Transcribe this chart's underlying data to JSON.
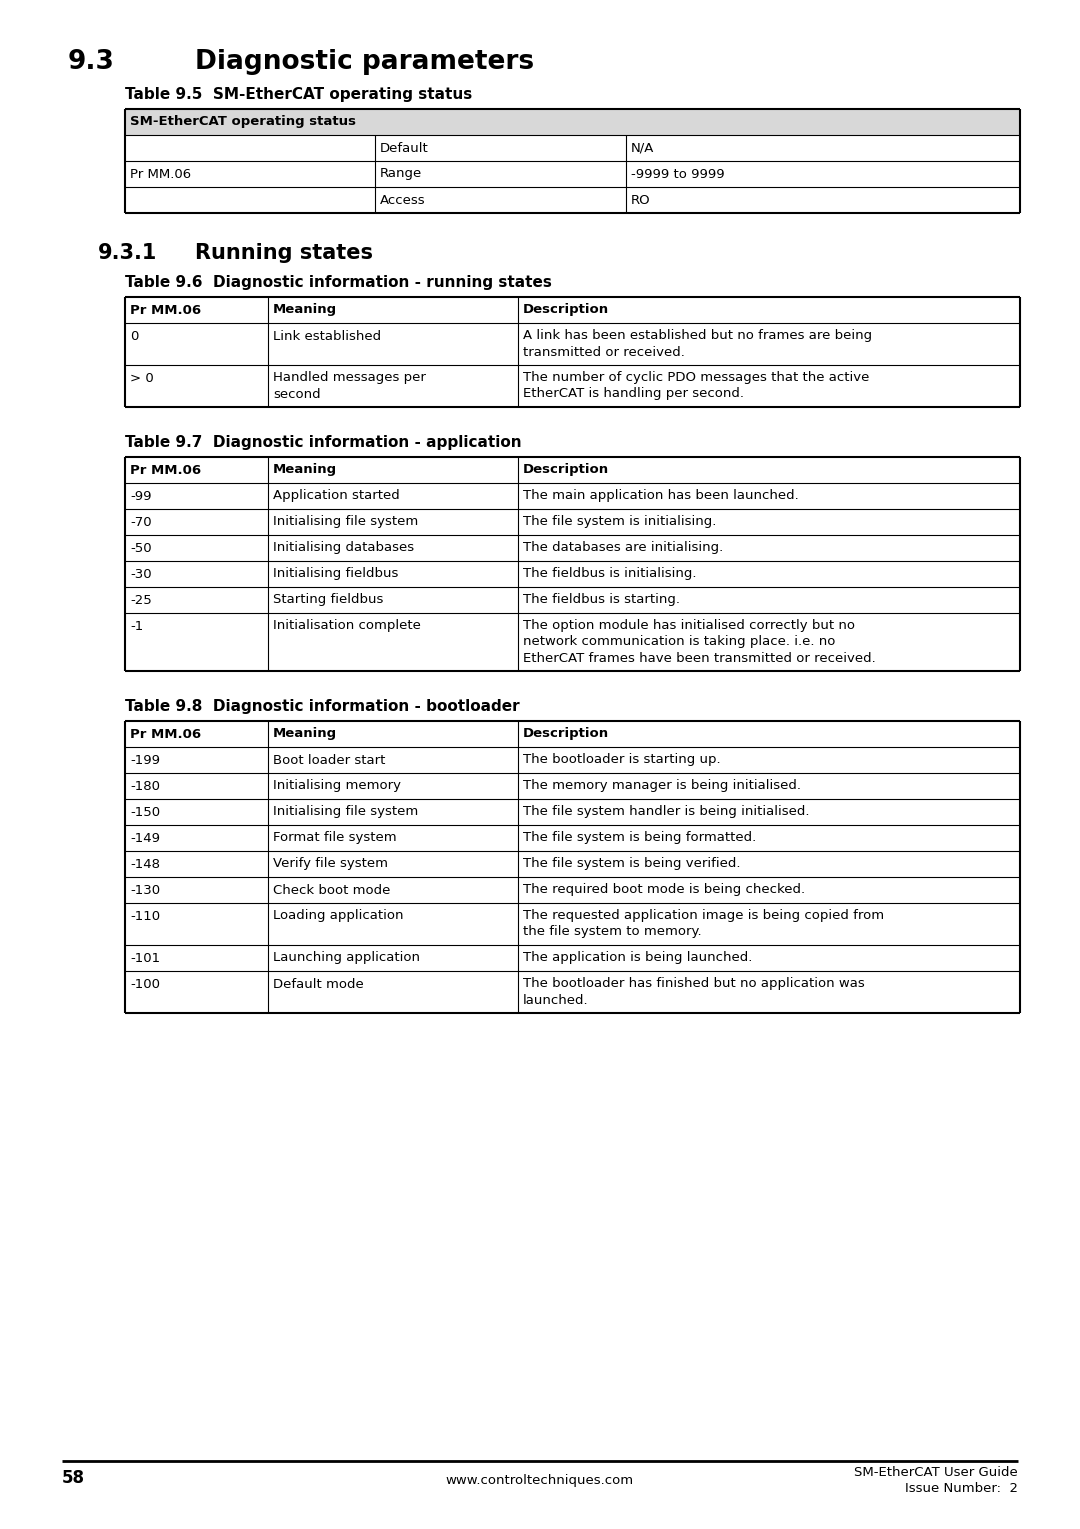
{
  "page_number": "58",
  "footer_website": "www.controltechniques.com",
  "footer_right1": "SM-EtherCAT User Guide",
  "footer_right2": "Issue Number:  2",
  "section_title": "9.3",
  "section_title_text": "Diagnostic parameters",
  "subsection_title": "9.3.1",
  "subsection_title_text": "Running states",
  "table95_title": "Table 9.5  SM-EtherCAT operating status",
  "table95_header": "SM-EtherCAT operating status",
  "table96_title": "Table 9.6  Diagnostic information - running states",
  "table96_cols": [
    "Pr MM.06",
    "Meaning",
    "Description"
  ],
  "table96_rows": [
    [
      "0",
      "Link established",
      "A link has been established but no frames are being\ntransmitted or received."
    ],
    [
      "> 0",
      "Handled messages per\nsecond",
      "The number of cyclic PDO messages that the active\nEtherCAT is handling per second."
    ]
  ],
  "table97_title": "Table 9.7  Diagnostic information - application",
  "table97_cols": [
    "Pr MM.06",
    "Meaning",
    "Description"
  ],
  "table97_rows": [
    [
      "-99",
      "Application started",
      "The main application has been launched."
    ],
    [
      "-70",
      "Initialising file system",
      "The file system is initialising."
    ],
    [
      "-50",
      "Initialising databases",
      "The databases are initialising."
    ],
    [
      "-30",
      "Initialising fieldbus",
      "The fieldbus is initialising."
    ],
    [
      "-25",
      "Starting fieldbus",
      "The fieldbus is starting."
    ],
    [
      "-1",
      "Initialisation complete",
      "The option module has initialised correctly but no\nnetwork communication is taking place. i.e. no\nEtherCAT frames have been transmitted or received."
    ]
  ],
  "table98_title": "Table 9.8  Diagnostic information - bootloader",
  "table98_cols": [
    "Pr MM.06",
    "Meaning",
    "Description"
  ],
  "table98_rows": [
    [
      "-199",
      "Boot loader start",
      "The bootloader is starting up."
    ],
    [
      "-180",
      "Initialising memory",
      "The memory manager is being initialised."
    ],
    [
      "-150",
      "Initialising file system",
      "The file system handler is being initialised."
    ],
    [
      "-149",
      "Format file system",
      "The file system is being formatted."
    ],
    [
      "-148",
      "Verify file system",
      "The file system is being verified."
    ],
    [
      "-130",
      "Check boot mode",
      "The required boot mode is being checked."
    ],
    [
      "-110",
      "Loading application",
      "The requested application image is being copied from\nthe file system to memory."
    ],
    [
      "-101",
      "Launching application",
      "The application is being launched."
    ],
    [
      "-100",
      "Default mode",
      "The bootloader has finished but no application was\nlaunched."
    ]
  ],
  "bg_color": "#ffffff",
  "text_color": "#000000"
}
